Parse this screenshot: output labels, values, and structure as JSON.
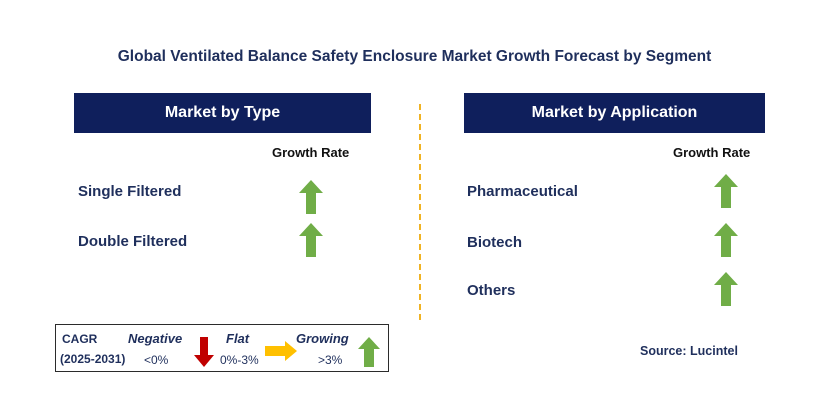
{
  "title": "Global Ventilated Balance Safety Enclosure Market Growth Forecast by Segment",
  "left_panel": {
    "header": "Market by Type",
    "column_header": "Growth Rate",
    "rows": [
      {
        "label": "Single Filtered",
        "trend": "growing"
      },
      {
        "label": "Double Filtered",
        "trend": "growing"
      }
    ]
  },
  "right_panel": {
    "header": "Market by Application",
    "column_header": "Growth Rate",
    "rows": [
      {
        "label": "Pharmaceutical",
        "trend": "growing"
      },
      {
        "label": "Biotech",
        "trend": "growing"
      },
      {
        "label": "Others",
        "trend": "growing"
      }
    ]
  },
  "legend": {
    "cagr_label": "CAGR",
    "period": "(2025-2031)",
    "negative": {
      "label": "Negative",
      "range": "<0%",
      "icon": "red-down-arrow-icon",
      "color": "#c00000"
    },
    "flat": {
      "label": "Flat",
      "range": "0%-3%",
      "icon": "yellow-right-arrow-icon",
      "color": "#ffc000"
    },
    "growing": {
      "label": "Growing",
      "range": ">3%",
      "icon": "green-up-arrow-icon",
      "color": "#70ad47"
    }
  },
  "source": "Source: Lucintel",
  "colors": {
    "header_bg": "#0f1f5c",
    "text_navy": "#1f2f5c",
    "divider": "#f0b323",
    "up_arrow": "#70ad47"
  }
}
